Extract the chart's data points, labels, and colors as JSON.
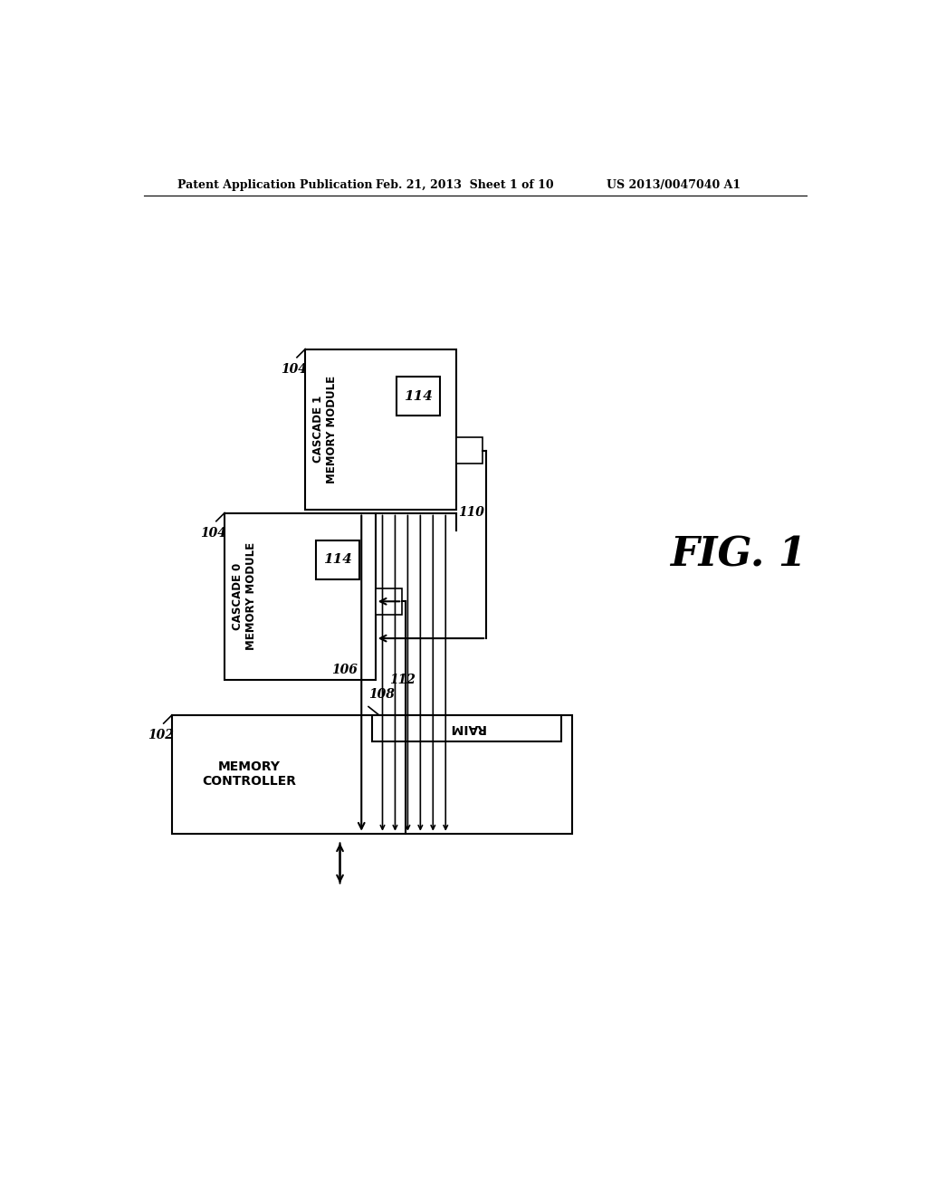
{
  "bg_color": "#ffffff",
  "header_text1": "Patent Application Publication",
  "header_text2": "Feb. 21, 2013  Sheet 1 of 10",
  "header_text3": "US 2013/0047040 A1",
  "fig_label": "FIG. 1",
  "memory_controller_label": "MEMORY\nCONTROLLER",
  "raim_label": "RAIM",
  "cascade0_label": "CASCADE 0\nMEMORY MODULE",
  "cascade1_label": "CASCADE 1\nMEMORY MODULE",
  "label_102": "102",
  "label_104": "104",
  "label_106": "106",
  "label_108": "108",
  "label_110": "110",
  "label_112": "112",
  "label_114": "114"
}
